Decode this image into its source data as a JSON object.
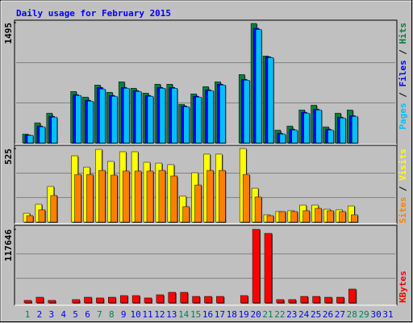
{
  "title": "Daily usage for February 2015",
  "legend_separator": " / ",
  "chart_data": [
    {
      "type": "bar",
      "series": [
        {
          "name": "Hits",
          "color": "#008040",
          "values": [
            110,
            250,
            370,
            null,
            640,
            570,
            720,
            630,
            760,
            680,
            620,
            730,
            730,
            480,
            610,
            700,
            760,
            null,
            850,
            1485,
            1080,
            160,
            210,
            410,
            470,
            200,
            370,
            410,
            null,
            null,
            null
          ]
        },
        {
          "name": "Files",
          "color": "#0000FF",
          "values": [
            100,
            210,
            330,
            null,
            600,
            530,
            690,
            590,
            690,
            650,
            590,
            690,
            690,
            460,
            580,
            660,
            730,
            null,
            790,
            1425,
            1070,
            120,
            170,
            380,
            420,
            170,
            320,
            340,
            null,
            null,
            null
          ]
        },
        {
          "name": "Pages",
          "color": "#00C0FF",
          "values": [
            95,
            200,
            320,
            null,
            590,
            520,
            670,
            580,
            680,
            640,
            580,
            680,
            680,
            450,
            570,
            650,
            720,
            null,
            780,
            1410,
            1060,
            110,
            160,
            370,
            410,
            160,
            310,
            330,
            null,
            null,
            null
          ]
        }
      ],
      "ylim": [
        0,
        1495
      ],
      "yticks": [
        1495
      ]
    },
    {
      "type": "bar",
      "series": [
        {
          "name": "Visits",
          "color": "#FFFF00",
          "values": [
            63,
            127,
            254,
            null,
            473,
            392,
            519,
            433,
            502,
            502,
            427,
            421,
            410,
            185,
            352,
            485,
            485,
            null,
            525,
            242,
            52,
            75,
            81,
            121,
            121,
            92,
            87,
            115,
            null,
            null,
            null
          ]
        },
        {
          "name": "Sites",
          "color": "#FF8000",
          "values": [
            46,
            87,
            190,
            null,
            340,
            340,
            369,
            335,
            364,
            364,
            364,
            369,
            329,
            110,
            265,
            369,
            369,
            null,
            340,
            179,
            46,
            75,
            75,
            81,
            98,
            81,
            75,
            52,
            null,
            null,
            null
          ]
        }
      ],
      "ylim": [
        0,
        525
      ],
      "yticks": [
        525
      ]
    },
    {
      "type": "bar",
      "categories": [
        "1",
        "2",
        "3",
        "4",
        "5",
        "6",
        "7",
        "8",
        "9",
        "10",
        "11",
        "12",
        "13",
        "14",
        "15",
        "16",
        "17",
        "18",
        "19",
        "20",
        "21",
        "22",
        "23",
        "24",
        "25",
        "26",
        "27",
        "28",
        "29",
        "30",
        "31"
      ],
      "category_label_colors": [
        "#00805C",
        "#0000FF",
        "#0000FF",
        "#0000FF",
        "#0000FF",
        "#0000FF",
        "#00805C",
        "#00805C",
        "#0000FF",
        "#0000FF",
        "#0000FF",
        "#0000FF",
        "#0000FF",
        "#00805C",
        "#00805C",
        "#0000FF",
        "#0000FF",
        "#0000FF",
        "#0000FF",
        "#0000FF",
        "#00805C",
        "#00805C",
        "#0000FF",
        "#0000FF",
        "#0000FF",
        "#0000FF",
        "#0000FF",
        "#00805C",
        "#00805C",
        "#0000FF",
        "#0000FF"
      ],
      "series": [
        {
          "name": "KBytes",
          "color": "#FF0000",
          "values": [
            3900,
            9000,
            3900,
            null,
            5200,
            9000,
            7800,
            9000,
            11600,
            11600,
            7800,
            12900,
            16800,
            16800,
            10300,
            10300,
            10300,
            null,
            11600,
            117646,
            111200,
            5200,
            5200,
            10300,
            10300,
            9000,
            9000,
            22000,
            null,
            null,
            null
          ]
        }
      ],
      "ylim": [
        0,
        117646
      ],
      "yticks": [
        117646
      ]
    }
  ]
}
